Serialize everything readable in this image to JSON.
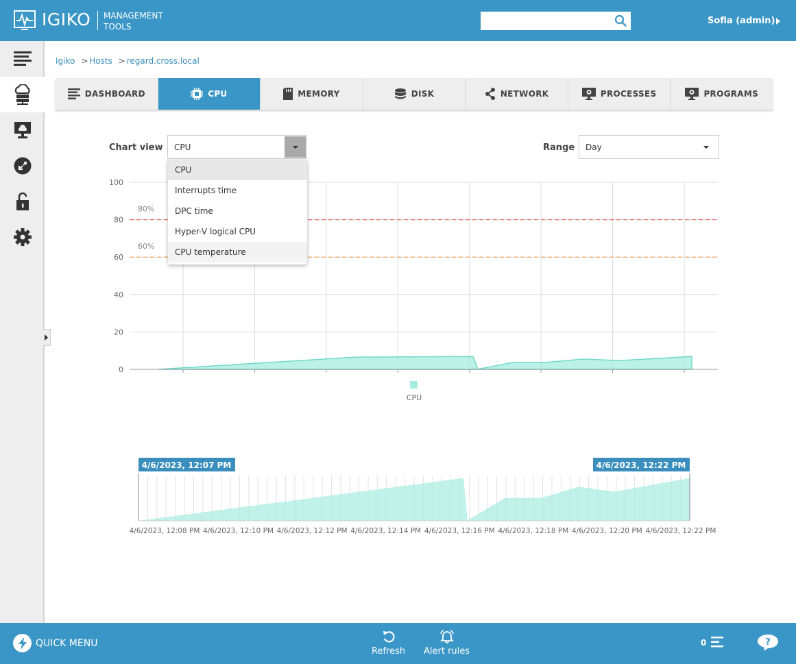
{
  "header": {
    "app_name": "IGIKO",
    "app_subtitle_line1": "MANAGEMENT",
    "app_subtitle_line2": "TOOLS",
    "search_value": "",
    "user": "Sofia (admin)"
  },
  "sidebar": {
    "items": [
      {
        "icon": "menu-lines-icon"
      },
      {
        "icon": "cloud-server-icon",
        "active": true
      },
      {
        "icon": "cloud-monitor-icon"
      },
      {
        "icon": "remote-connect-icon"
      },
      {
        "icon": "unlock-icon"
      },
      {
        "icon": "gear-icon"
      }
    ]
  },
  "breadcrumb": [
    "Igiko",
    "Hosts",
    "regard.cross.local"
  ],
  "tabs": [
    {
      "label": "DASHBOARD",
      "icon": "list-icon"
    },
    {
      "label": "CPU",
      "icon": "cpu-chip-icon",
      "active": true
    },
    {
      "label": "MEMORY",
      "icon": "memory-card-icon"
    },
    {
      "label": "DISK",
      "icon": "database-icon"
    },
    {
      "label": "NETWORK",
      "icon": "share-nodes-icon"
    },
    {
      "label": "PROCESSES",
      "icon": "monitor-gear-icon"
    },
    {
      "label": "PROGRAMS",
      "icon": "monitor-gear-icon"
    }
  ],
  "controls": {
    "chart_view_label": "Chart view",
    "chart_view_value": "CPU",
    "chart_view_options": [
      "CPU",
      "Interrupts time",
      "DPC time",
      "Hyper-V logical CPU",
      "CPU temperature"
    ],
    "range_label": "Range",
    "range_value": "Day"
  },
  "chart_data": [
    {
      "type": "area",
      "series": [
        {
          "name": "CPU",
          "color": "#a6ece0"
        }
      ],
      "y": [
        0,
        0.5,
        1,
        1.5,
        2,
        2.5,
        3,
        3.5,
        4,
        4.5,
        5,
        5.5,
        6,
        6.5,
        6.9,
        0.1,
        3.7,
        3.7,
        5.5,
        4.7,
        6.9
      ],
      "ylim": [
        0,
        100
      ],
      "yticks": [
        0,
        20,
        40,
        60,
        80,
        100
      ],
      "thresholds": [
        {
          "label": "80%",
          "value": 80,
          "color": "#e86a6a"
        },
        {
          "label": "60%",
          "value": 60,
          "color": "#f0a050"
        }
      ],
      "legend": "CPU",
      "grid": true
    },
    {
      "type": "area",
      "range_start": "4/6/2023, 12:07 PM",
      "range_end": "4/6/2023, 12:22 PM",
      "x_ticks": [
        "4/6/2023, 12:08 PM",
        "4/6/2023, 12:10 PM",
        "4/6/2023, 12:12 PM",
        "4/6/2023, 12:14 PM",
        "4/6/2023, 12:16 PM",
        "4/6/2023, 12:18 PM",
        "4/6/2023, 12:20 PM",
        "4/6/2023, 12:22 PM"
      ],
      "y": [
        0,
        6.9,
        0.1,
        3.7,
        3.7,
        5.5,
        4.7,
        6.9
      ]
    }
  ],
  "bottom": {
    "quick_menu": "QUICK MENU",
    "refresh": "Refresh",
    "alert_rules": "Alert rules",
    "counter": "0"
  }
}
